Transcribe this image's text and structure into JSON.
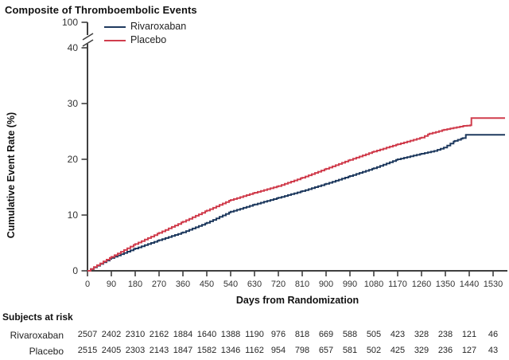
{
  "title": "Composite of Thromboembolic Events",
  "colors": {
    "rivaroxaban": "#1f3a5f",
    "placebo": "#d03d4d",
    "axis": "#3f3f3f",
    "tick_text": "#333333"
  },
  "chart_data": {
    "type": "line",
    "subtype": "kaplan-meier-step",
    "title": "Composite of Thromboembolic Events",
    "xlabel": "Days from Randomization",
    "ylabel": "Cumulative Event Rate (%)",
    "x_ticks": [
      0,
      90,
      180,
      270,
      360,
      450,
      540,
      630,
      720,
      810,
      900,
      990,
      1080,
      1170,
      1260,
      1350,
      1440,
      1530
    ],
    "y_ticks": [
      0,
      10,
      20,
      30,
      40,
      100
    ],
    "y_axis_break_between": [
      40,
      100
    ],
    "ylim_shown": [
      0,
      40
    ],
    "x_end": 1575,
    "grid": false,
    "legend_position": "top-left-inside",
    "series": [
      {
        "name": "Rivaroxaban",
        "color": "#1f3a5f",
        "anchors": [
          [
            0,
            0
          ],
          [
            90,
            2.3
          ],
          [
            180,
            4.0
          ],
          [
            270,
            5.5
          ],
          [
            360,
            6.9
          ],
          [
            450,
            8.6
          ],
          [
            540,
            10.6
          ],
          [
            630,
            11.9
          ],
          [
            720,
            13.1
          ],
          [
            810,
            14.3
          ],
          [
            900,
            15.6
          ],
          [
            990,
            17.0
          ],
          [
            1080,
            18.4
          ],
          [
            1170,
            20.0
          ],
          [
            1260,
            21.0
          ],
          [
            1308,
            21.5
          ],
          [
            1345,
            22.1
          ],
          [
            1385,
            23.3
          ],
          [
            1415,
            23.8
          ],
          [
            1428,
            24.4
          ],
          [
            1575,
            24.4
          ]
        ]
      },
      {
        "name": "Placebo",
        "color": "#d03d4d",
        "anchors": [
          [
            0,
            0
          ],
          [
            90,
            2.5
          ],
          [
            180,
            4.8
          ],
          [
            270,
            6.8
          ],
          [
            360,
            8.8
          ],
          [
            450,
            10.8
          ],
          [
            540,
            12.7
          ],
          [
            630,
            14.0
          ],
          [
            720,
            15.2
          ],
          [
            810,
            16.7
          ],
          [
            900,
            18.3
          ],
          [
            990,
            19.9
          ],
          [
            1080,
            21.4
          ],
          [
            1170,
            22.7
          ],
          [
            1260,
            23.9
          ],
          [
            1290,
            24.6
          ],
          [
            1345,
            25.3
          ],
          [
            1420,
            26.0
          ],
          [
            1444,
            26.1
          ],
          [
            1448,
            27.4
          ],
          [
            1575,
            27.4
          ]
        ]
      }
    ]
  },
  "risk_table": {
    "header": "Subjects at risk",
    "rows": [
      {
        "label": "Rivaroxaban",
        "counts": [
          2507,
          2402,
          2310,
          2162,
          1884,
          1640,
          1388,
          1190,
          976,
          818,
          669,
          588,
          505,
          423,
          328,
          238,
          121,
          46
        ]
      },
      {
        "label": "Placebo",
        "counts": [
          2515,
          2405,
          2303,
          2143,
          1847,
          1582,
          1346,
          1162,
          954,
          798,
          657,
          581,
          502,
          425,
          329,
          236,
          127,
          43
        ]
      }
    ]
  }
}
